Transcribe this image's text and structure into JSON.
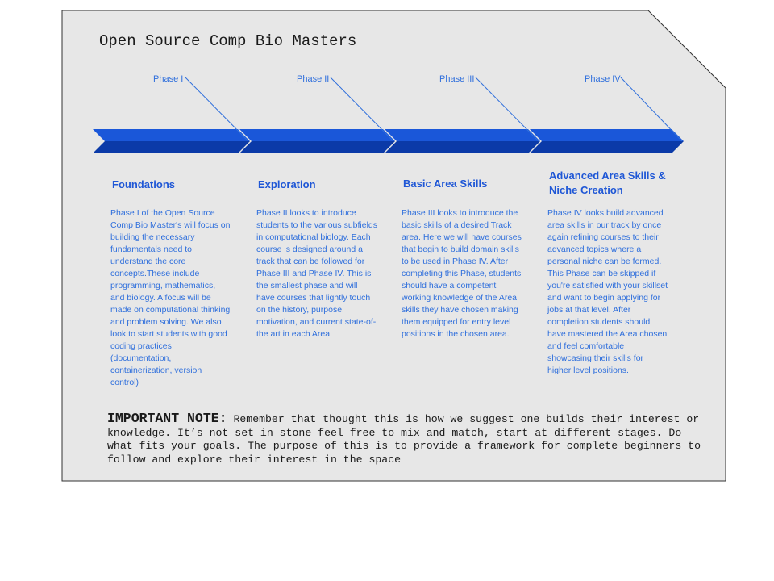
{
  "page": {
    "title": "Open Source Comp Bio Masters"
  },
  "colors": {
    "card_background": "#e7e7e7",
    "card_border": "#333333",
    "arrow_light": "#1a57d9",
    "arrow_dark": "#0b3aa8",
    "text_blue": "#2f6fdc",
    "heading_blue": "#1f57d6"
  },
  "phases": [
    {
      "label": "Phase I",
      "title": "Foundations",
      "body": "Phase I of the Open Source Comp Bio Master's will focus on building the necessary fundamentals need to understand the core concepts.These include programming, mathematics, and biology. A focus will be made on computational thinking and problem solving. We also look to start students with good coding practices (documentation, containerization, version control)"
    },
    {
      "label": "Phase II",
      "title": "Exploration",
      "body": "Phase II looks to introduce students to the various subfields in computational biology. Each course is designed around a track that can be followed for Phase III and Phase IV. This is the smallest phase and will have courses that lightly touch on the history, purpose, motivation, and current state-of-the art in each Area."
    },
    {
      "label": "Phase III",
      "title": "Basic Area Skills",
      "body": "Phase III looks to introduce the basic skills of a desired Track area. Here we will have courses that begin to build domain skills to be used in Phase IV. After completing this Phase, students should have a competent working knowledge of the Area skills they have chosen making them equipped for entry level positions in the chosen area."
    },
    {
      "label": "Phase IV",
      "title": "Advanced Area Skills & Niche Creation",
      "body": "Phase IV looks build advanced area skills in our track by once again refining courses to their advanced topics where a personal niche can be formed. This Phase can be skipped if you're satisfied with your skillset and want to begin applying for jobs at that level. After completion students should have mastered the Area chosen and feel comfortable showcasing their skills for higher level positions."
    }
  ],
  "note": {
    "heading": "IMPORTANT NOTE:",
    "text": "Remember that thought this is how we suggest one builds their interest or knowledge. It’s not set in stone feel free to mix and match, start at different stages. Do what fits your goals. The purpose of this is to provide a framework for complete beginners to follow and explore their interest in the space"
  }
}
